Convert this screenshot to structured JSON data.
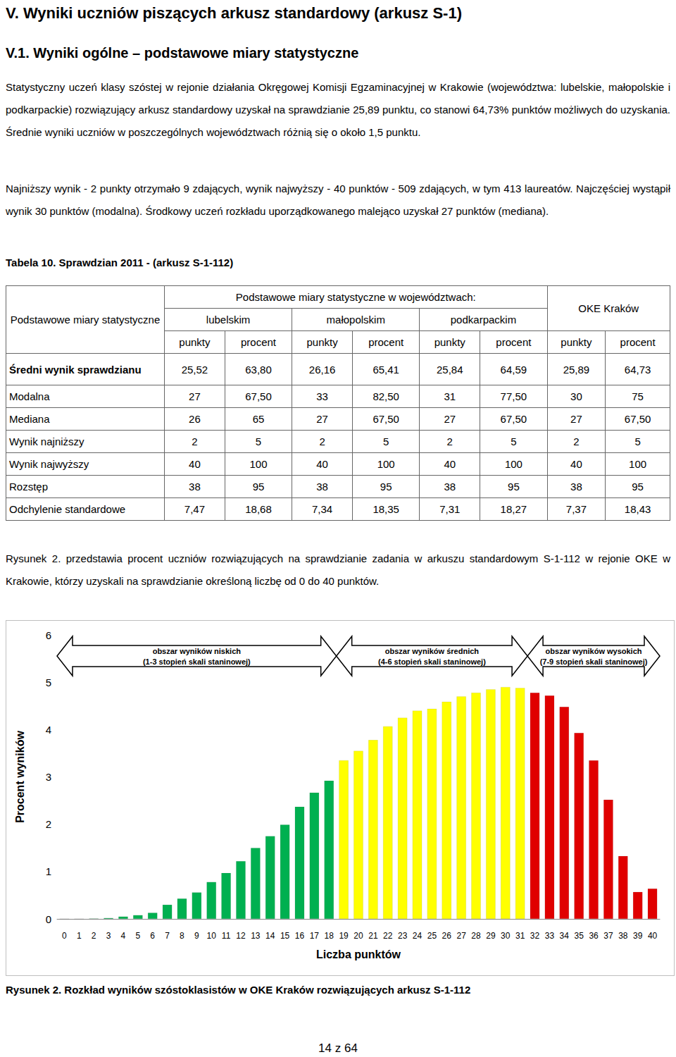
{
  "heading": "V.    Wyniki uczniów piszących arkusz standardowy (arkusz S-1)",
  "subheading": "V.1. Wyniki ogólne – podstawowe miary statystyczne",
  "paragraphs": [
    "Statystyczny uczeń klasy szóstej w rejonie działania Okręgowej Komisji Egzaminacyjnej w Krakowie (województwa: lubelskie, małopolskie i podkarpackie) rozwiązujący arkusz standardowy uzyskał na sprawdzianie 25,89 punktu, co stanowi 64,73% punktów możliwych do uzyskania. Średnie wyniki uczniów w poszczególnych województwach różnią się o około 1,5 punktu.",
    "Najniższy wynik - 2 punkty otrzymało 9 zdających, wynik najwyższy - 40 punktów - 509 zdających, w tym 413 laureatów. Najczęściej wystąpił wynik 30 punktów (modalna). Środkowy uczeń rozkładu uporządkowanego malejąco uzyskał 27 punktów (mediana)."
  ],
  "table_caption": "Tabela 10.  Sprawdzian 2011 - (arkusz S-1-112)",
  "table": {
    "header": {
      "corner": "Podstawowe miary statystyczne",
      "group": "Podstawowe miary statystyczne w województwach:",
      "regions": [
        "lubelskim",
        "małopolskim",
        "podkarpackim"
      ],
      "total": "OKE Kraków",
      "units": [
        "punkty",
        "procent"
      ]
    },
    "rows": [
      [
        "Średni wynik sprawdzianu",
        "25,52",
        "63,80",
        "26,16",
        "65,41",
        "25,84",
        "64,59",
        "25,89",
        "64,73"
      ],
      [
        "Modalna",
        "27",
        "67,50",
        "33",
        "82,50",
        "31",
        "77,50",
        "30",
        "75"
      ],
      [
        "Mediana",
        "26",
        "65",
        "27",
        "67,50",
        "27",
        "67,50",
        "27",
        "67,50"
      ],
      [
        "Wynik najniższy",
        "2",
        "5",
        "2",
        "5",
        "2",
        "5",
        "2",
        "5"
      ],
      [
        "Wynik najwyższy",
        "40",
        "100",
        "40",
        "100",
        "40",
        "100",
        "40",
        "100"
      ],
      [
        "Rozstęp",
        "38",
        "95",
        "38",
        "95",
        "38",
        "95",
        "38",
        "95"
      ],
      [
        "Odchylenie standardowe",
        "7,47",
        "18,68",
        "7,34",
        "18,35",
        "7,31",
        "18,27",
        "7,37",
        "18,43"
      ]
    ]
  },
  "figure_intro": "Rysunek 2. przedstawia procent uczniów rozwiązujących na sprawdzianie zadania w arkuszu standardowym S-1-112 w rejonie OKE w Krakowie, którzy uzyskali na sprawdzianie określoną liczbę od 0 do 40 punktów.",
  "chart_data": {
    "type": "bar",
    "xlabel": "Liczba punktów",
    "ylabel": "Procent wyników",
    "categories": [
      0,
      1,
      2,
      3,
      4,
      5,
      6,
      7,
      8,
      9,
      10,
      11,
      12,
      13,
      14,
      15,
      16,
      17,
      18,
      19,
      20,
      21,
      22,
      23,
      24,
      25,
      26,
      27,
      28,
      29,
      30,
      31,
      32,
      33,
      34,
      35,
      36,
      37,
      38,
      39,
      40
    ],
    "values": [
      0,
      0,
      0.01,
      0.02,
      0.05,
      0.08,
      0.13,
      0.3,
      0.43,
      0.56,
      0.78,
      0.97,
      1.22,
      1.5,
      1.75,
      1.99,
      2.37,
      2.67,
      2.92,
      3.35,
      3.55,
      3.78,
      4.07,
      4.25,
      4.4,
      4.44,
      4.59,
      4.7,
      4.78,
      4.85,
      4.9,
      4.88,
      4.78,
      4.72,
      4.48,
      3.93,
      3.35,
      2.52,
      1.33,
      0.57,
      0.64
    ],
    "colors": [
      "#00b050",
      "#00b050",
      "#00b050",
      "#00b050",
      "#00b050",
      "#00b050",
      "#00b050",
      "#00b050",
      "#00b050",
      "#00b050",
      "#00b050",
      "#00b050",
      "#00b050",
      "#00b050",
      "#00b050",
      "#00b050",
      "#00b050",
      "#00b050",
      "#00b050",
      "#ffff00",
      "#ffff00",
      "#ffff00",
      "#ffff00",
      "#ffff00",
      "#ffff00",
      "#ffff00",
      "#ffff00",
      "#ffff00",
      "#ffff00",
      "#ffff00",
      "#ffff00",
      "#ffff00",
      "#e00000",
      "#e00000",
      "#e00000",
      "#e00000",
      "#e00000",
      "#e00000",
      "#e00000",
      "#e00000",
      "#e00000"
    ],
    "annotations": [
      [
        "obszar wyników niskich",
        "(1-3 stopień skali staninowej)"
      ],
      [
        "obszar wyników średnich",
        "(4-6 stopień skali staninowej)"
      ],
      [
        "obszar wyników wysokich",
        "(7-9 stopień skali staninowej)"
      ]
    ],
    "ylim": [
      0,
      6
    ],
    "yticks": [
      0,
      1,
      2,
      3,
      4,
      5,
      6
    ],
    "grid": false
  },
  "figure_caption": "Rysunek 2. Rozkład wyników szóstoklasistów w OKE Kraków rozwiązujących arkusz S-1-112",
  "footer": "14 z 64"
}
